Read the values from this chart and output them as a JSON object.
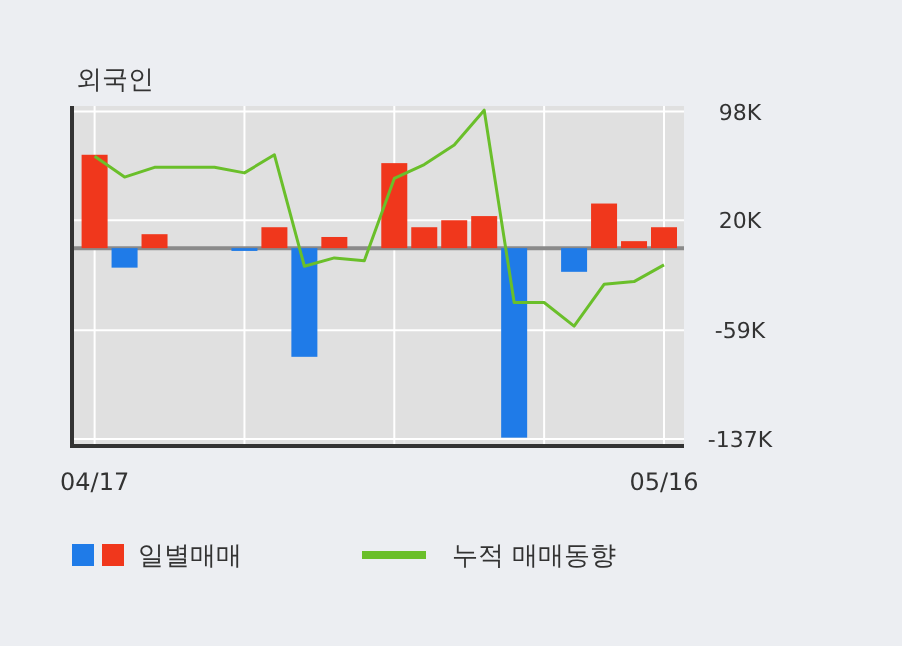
{
  "chart_data": {
    "type": "bar",
    "title": "외국인",
    "categories": [
      "04/17",
      null,
      null,
      null,
      null,
      null,
      null,
      null,
      null,
      null,
      null,
      null,
      null,
      null,
      null,
      null,
      null,
      null,
      null,
      "05/16"
    ],
    "series": [
      {
        "name": "일별매매",
        "colors": [
          "#f0371c",
          "#1f7be8",
          "#f0371c",
          "#f0371c",
          "#f0371c",
          "#1f7be8",
          "#f0371c",
          "#1f7be8",
          "#f0371c",
          "#f0371c",
          "#f0371c",
          "#f0371c",
          "#f0371c",
          "#f0371c",
          "#1f7be8",
          "#f0371c",
          "#1f7be8",
          "#f0371c",
          "#f0371c",
          "#f0371c"
        ],
        "values": [
          67,
          -14,
          10,
          0,
          0,
          -2,
          15,
          -78,
          8,
          0,
          61,
          15,
          20,
          23,
          -136,
          0,
          -17,
          32,
          5,
          15
        ]
      },
      {
        "name": "누적 매매동향",
        "type": "line",
        "color": "#6abf2a",
        "values": [
          66,
          51,
          58,
          58,
          58,
          54,
          67,
          -13,
          -7,
          -9,
          50,
          60,
          74,
          99,
          -39,
          -39,
          -56,
          -26,
          -24,
          -12
        ]
      }
    ],
    "ylim": [
      -142,
      102
    ],
    "yticks": [
      {
        "value": 98,
        "label": "98K"
      },
      {
        "value": 20,
        "label": "20K"
      },
      {
        "value": -59,
        "label": "-59K"
      },
      {
        "value": -137,
        "label": "-137K"
      }
    ],
    "grid": true,
    "legend": "bottom",
    "marker": "none",
    "line_style": "solid"
  }
}
